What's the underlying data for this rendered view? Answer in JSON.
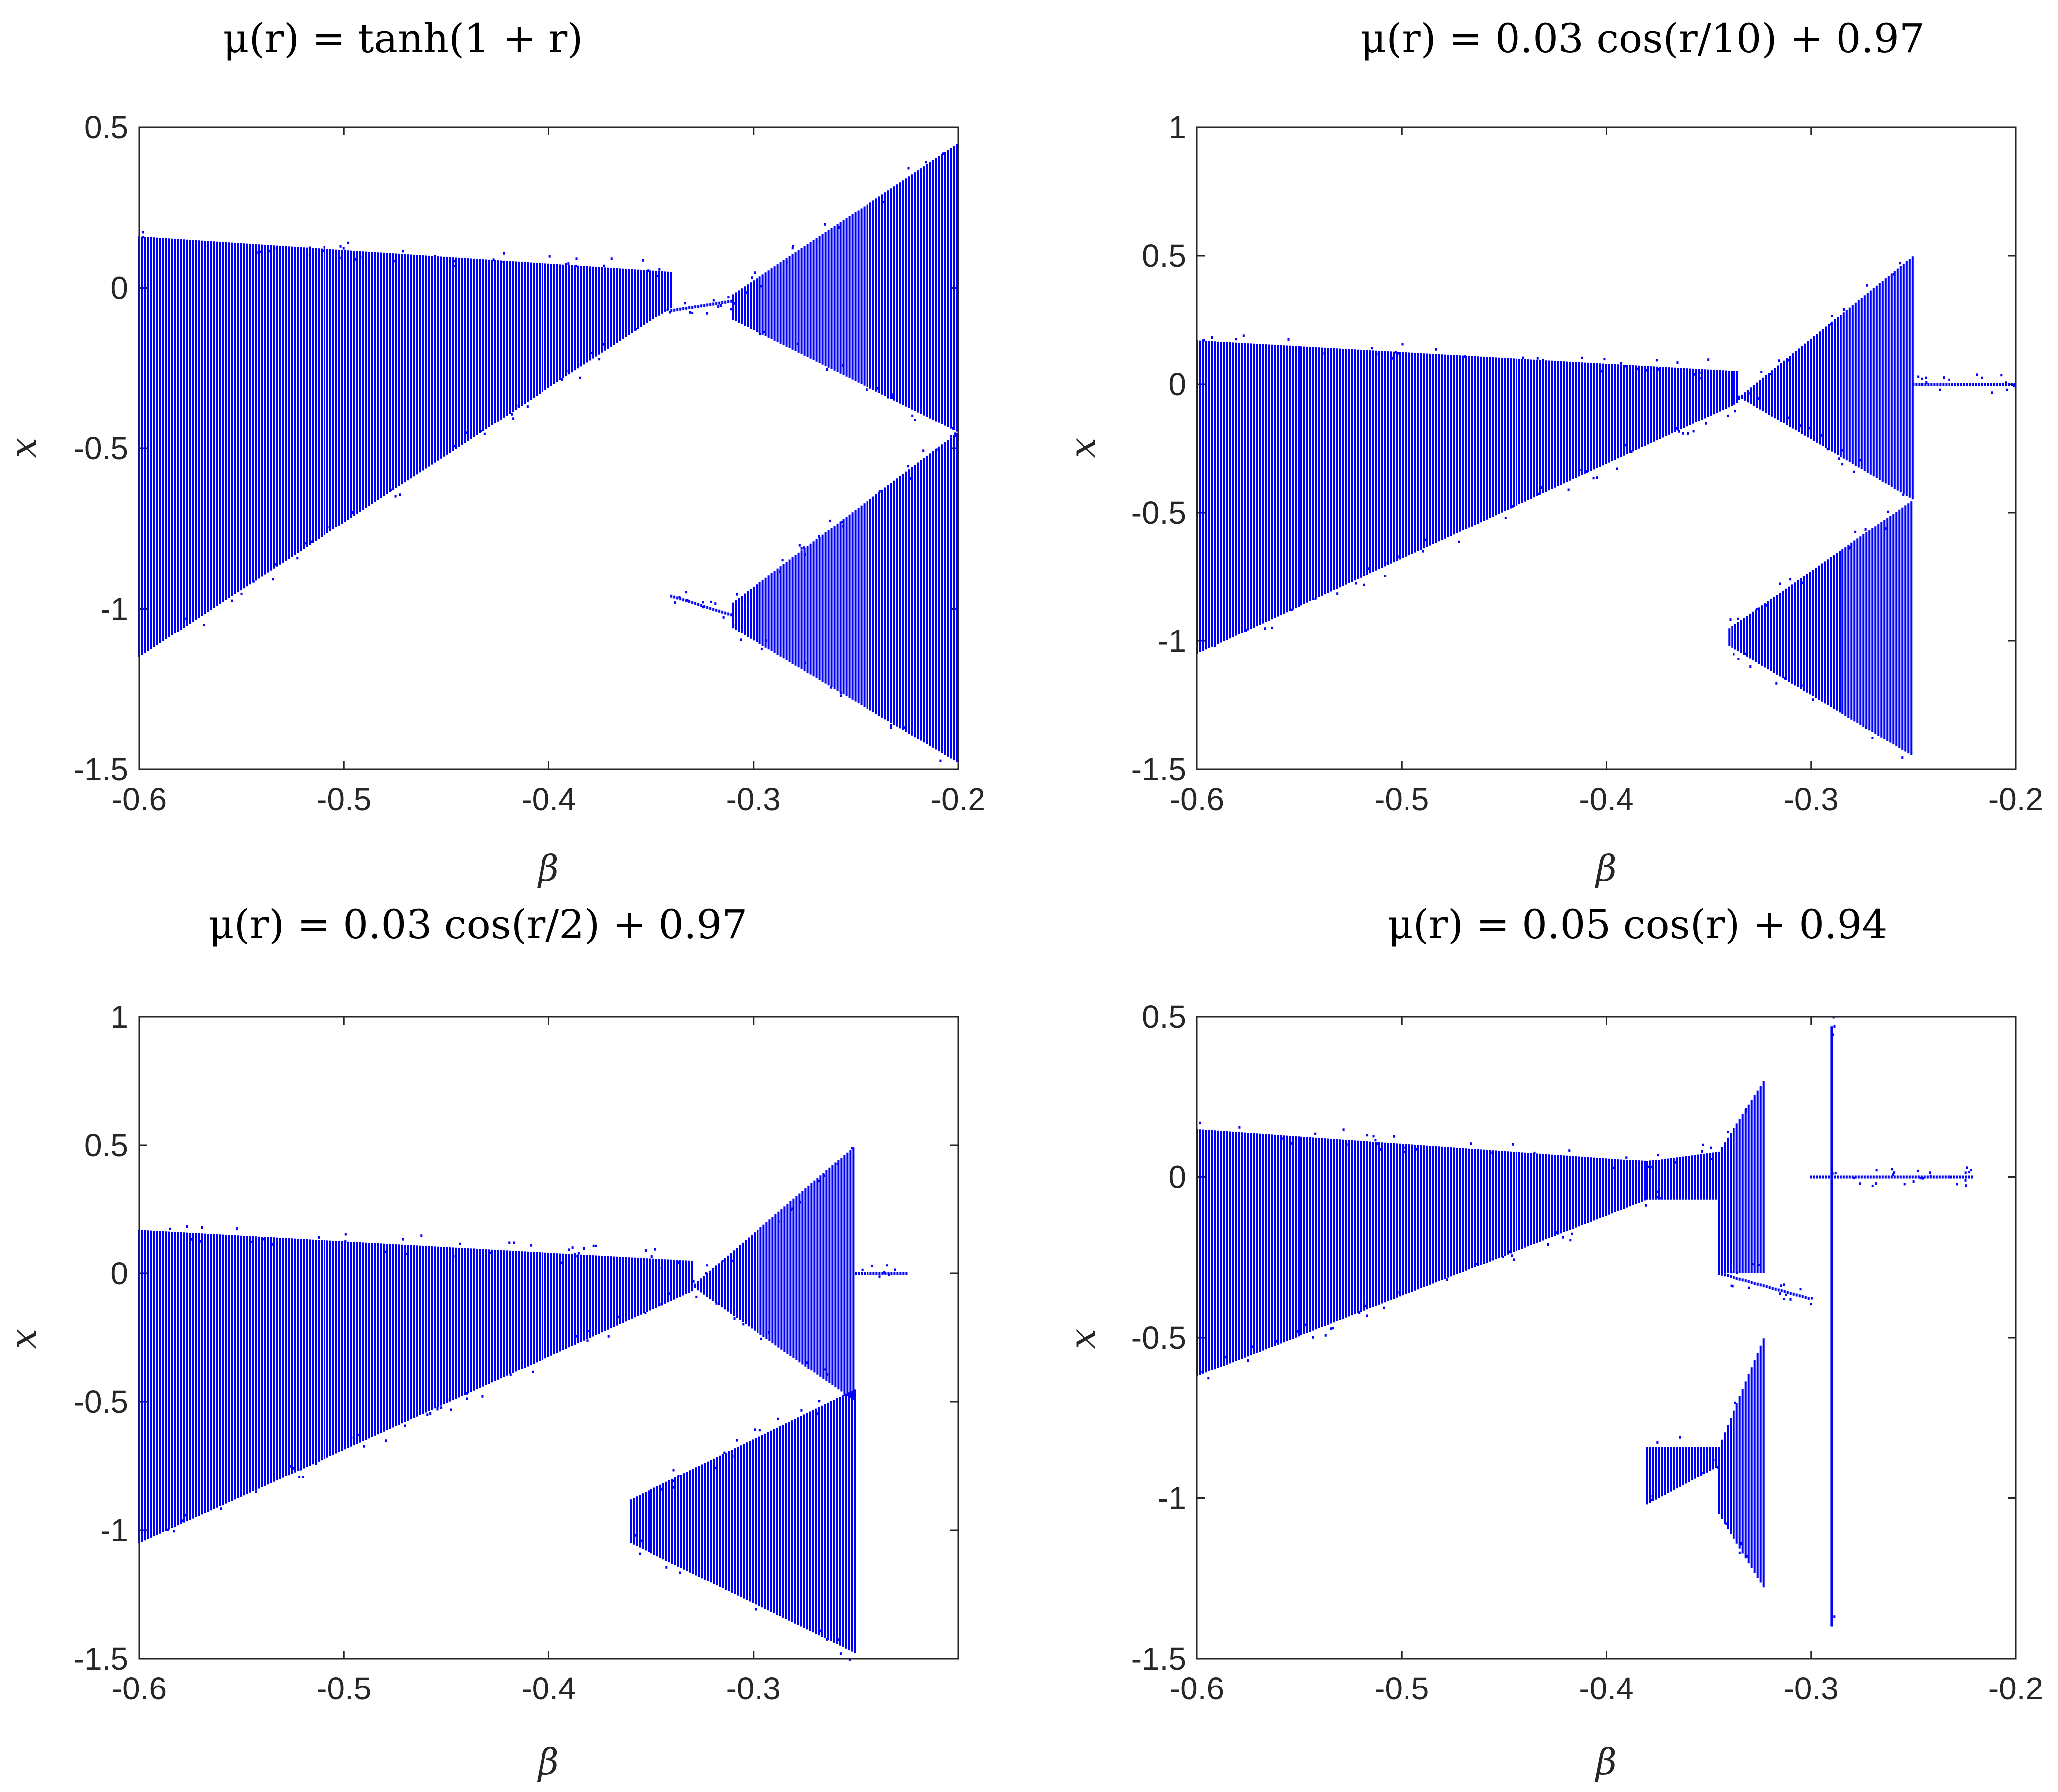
{
  "chart_data": [
    {
      "type": "scatter",
      "title": "μ(r) = tanh(1 + r)",
      "xlabel": "β",
      "ylabel": "x",
      "xlim": [
        -0.6,
        -0.2
      ],
      "ylim": [
        -1.5,
        0.5
      ],
      "xticks": [
        -0.6,
        -0.5,
        -0.4,
        -0.3,
        -0.2
      ],
      "xtick_labels": [
        "-0.6",
        "-0.5",
        "-0.4",
        "-0.3",
        "-0.2"
      ],
      "yticks": [
        -1.5,
        -1,
        -0.5,
        0,
        0.5
      ],
      "ytick_labels": [
        "-1.5",
        "-1",
        "-0.5",
        "0",
        "0.5"
      ],
      "grid": false,
      "marker_color": "#0000ff",
      "regions": [
        {
          "beta": [
            -0.6,
            -0.34
          ],
          "upper": [
            0.16,
            0.05
          ],
          "lower": [
            -1.15,
            -0.06
          ]
        },
        {
          "beta": [
            -0.34,
            -0.31
          ],
          "upper": [
            -0.07,
            -0.04
          ],
          "lower": [
            -0.07,
            -0.04
          ]
        },
        {
          "beta": [
            -0.34,
            -0.31
          ],
          "upper": [
            -0.96,
            -1.02
          ],
          "lower": [
            -0.96,
            -1.02
          ]
        },
        {
          "beta": [
            -0.31,
            -0.2
          ],
          "upper": [
            -0.02,
            0.45
          ],
          "lower": [
            -0.1,
            -0.45
          ]
        },
        {
          "beta": [
            -0.31,
            -0.2
          ],
          "upper": [
            -0.98,
            -0.45
          ],
          "lower": [
            -1.06,
            -1.48
          ]
        }
      ]
    },
    {
      "type": "scatter",
      "title": "μ(r) = 0.03 cos(r/10) + 0.97",
      "xlabel": "β",
      "ylabel": "x",
      "xlim": [
        -0.6,
        -0.2
      ],
      "ylim": [
        -1.5,
        1
      ],
      "xticks": [
        -0.6,
        -0.5,
        -0.4,
        -0.3,
        -0.2
      ],
      "xtick_labels": [
        "-0.6",
        "-0.5",
        "-0.4",
        "-0.3",
        "-0.2"
      ],
      "yticks": [
        -1.5,
        -1,
        -0.5,
        0,
        0.5,
        1
      ],
      "ytick_labels": [
        "-1.5",
        "-1",
        "-0.5",
        "0",
        "0.5",
        "1"
      ],
      "grid": false,
      "marker_color": "#0000ff",
      "regions": [
        {
          "beta": [
            -0.6,
            -0.335
          ],
          "upper": [
            0.17,
            0.05
          ],
          "lower": [
            -1.05,
            -0.07
          ]
        },
        {
          "beta": [
            -0.335,
            -0.25
          ],
          "upper": [
            -0.05,
            0.5
          ],
          "lower": [
            -0.05,
            -0.45
          ]
        },
        {
          "beta": [
            -0.34,
            -0.25
          ],
          "upper": [
            -0.95,
            -0.45
          ],
          "lower": [
            -1.02,
            -1.45
          ]
        },
        {
          "beta": [
            -0.25,
            -0.2
          ],
          "upper": [
            0,
            0
          ],
          "lower": [
            0,
            0
          ]
        }
      ]
    },
    {
      "type": "scatter",
      "title": "μ(r) = 0.03 cos(r/2) + 0.97",
      "xlabel": "β",
      "ylabel": "x",
      "xlim": [
        -0.6,
        -0.2
      ],
      "ylim": [
        -1.5,
        1
      ],
      "xticks": [
        -0.6,
        -0.5,
        -0.4,
        -0.3
      ],
      "xtick_labels": [
        "-0.6",
        "-0.5",
        "-0.4",
        "-0.3"
      ],
      "yticks": [
        -1.5,
        -1,
        -0.5,
        0,
        0.5,
        1
      ],
      "ytick_labels": [
        "-1.5",
        "-1",
        "-0.5",
        "0",
        "0.5",
        "1"
      ],
      "grid": false,
      "marker_color": "#0000ff",
      "regions": [
        {
          "beta": [
            -0.6,
            -0.33
          ],
          "upper": [
            0.17,
            0.05
          ],
          "lower": [
            -1.05,
            -0.07
          ]
        },
        {
          "beta": [
            -0.33,
            -0.25
          ],
          "upper": [
            -0.05,
            0.5
          ],
          "lower": [
            -0.05,
            -0.5
          ]
        },
        {
          "beta": [
            -0.36,
            -0.25
          ],
          "upper": [
            -0.88,
            -0.45
          ],
          "lower": [
            -1.05,
            -1.48
          ]
        },
        {
          "beta": [
            -0.25,
            -0.225
          ],
          "upper": [
            0,
            0
          ],
          "lower": [
            0,
            0
          ]
        }
      ]
    },
    {
      "type": "scatter",
      "title": "μ(r) = 0.05 cos(r) + 0.94",
      "xlabel": "β",
      "ylabel": "x",
      "xlim": [
        -0.6,
        -0.2
      ],
      "ylim": [
        -1.5,
        0.5
      ],
      "xticks": [
        -0.6,
        -0.5,
        -0.4,
        -0.3,
        -0.2
      ],
      "xtick_labels": [
        "-0.6",
        "-0.5",
        "-0.4",
        "-0.3",
        "-0.2"
      ],
      "yticks": [
        -1.5,
        -1,
        -0.5,
        0,
        0.5
      ],
      "ytick_labels": [
        "-1.5",
        "-1",
        "-0.5",
        "0",
        "0.5"
      ],
      "grid": false,
      "marker_color": "#0000ff",
      "regions": [
        {
          "beta": [
            -0.6,
            -0.38
          ],
          "upper": [
            0.15,
            0.05
          ],
          "lower": [
            -0.62,
            -0.07
          ]
        },
        {
          "beta": [
            -0.38,
            -0.345
          ],
          "upper": [
            0.05,
            0.08
          ],
          "lower": [
            -0.07,
            -0.07
          ]
        },
        {
          "beta": [
            -0.345,
            -0.323
          ],
          "upper": [
            0.08,
            0.3
          ],
          "lower": [
            -0.3,
            -0.3
          ]
        },
        {
          "beta": [
            -0.345,
            -0.3
          ],
          "upper": [
            -0.3,
            -0.38
          ],
          "lower": [
            -0.3,
            -0.38
          ]
        },
        {
          "beta": [
            -0.38,
            -0.345
          ],
          "upper": [
            -0.84,
            -0.84
          ],
          "lower": [
            -1.02,
            -0.9
          ]
        },
        {
          "beta": [
            -0.345,
            -0.323
          ],
          "upper": [
            -0.84,
            -0.5
          ],
          "lower": [
            -1.05,
            -1.28
          ]
        },
        {
          "beta": [
            -0.29,
            -0.289
          ],
          "upper": [
            0.47,
            0.47
          ],
          "lower": [
            -1.4,
            -1.4
          ]
        },
        {
          "beta": [
            -0.3,
            -0.22
          ],
          "upper": [
            0,
            0
          ],
          "lower": [
            0,
            0
          ]
        }
      ]
    }
  ]
}
